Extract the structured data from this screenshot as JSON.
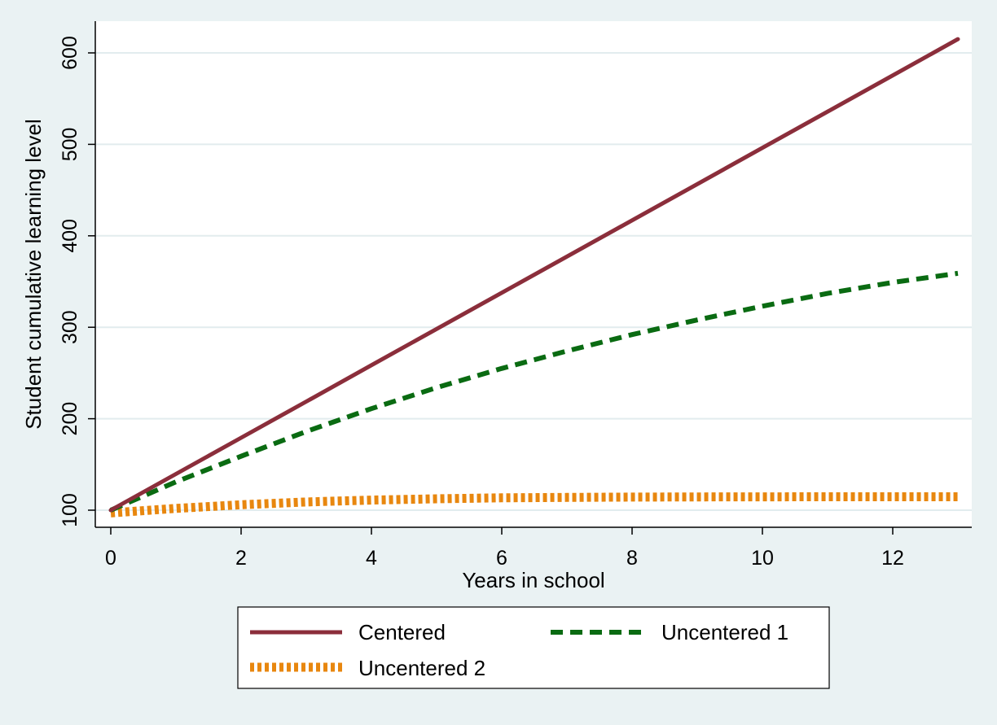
{
  "chart_data": {
    "type": "line",
    "title": "",
    "xlabel": "Years in school",
    "ylabel": "Student cumulative learning level",
    "xlim": [
      0,
      13
    ],
    "ylim": [
      100,
      630
    ],
    "xticks": [
      0,
      2,
      4,
      6,
      8,
      10,
      12
    ],
    "yticks": [
      100,
      200,
      300,
      400,
      500,
      600
    ],
    "grid": "horizontal",
    "legend": "bottom, outside",
    "x": [
      0,
      1,
      2,
      3,
      4,
      5,
      6,
      7,
      8,
      9,
      10,
      11,
      12,
      13
    ],
    "series": [
      {
        "name": "Centered",
        "color": "#8b2e3b",
        "style": "solid",
        "values": [
          100,
          139.6,
          179.2,
          218.8,
          258.5,
          298.1,
          337.7,
          377.3,
          416.9,
          456.5,
          496.2,
          535.8,
          575.4,
          615
        ]
      },
      {
        "name": "Uncentered 1",
        "color": "#0a6b12",
        "style": "dashed",
        "values": [
          100,
          131,
          159,
          186,
          211,
          234,
          255,
          274,
          292,
          308,
          323,
          337,
          349,
          359
        ]
      },
      {
        "name": "Uncentered 2",
        "color": "#e8870f",
        "style": "dotted",
        "values": [
          97,
          102,
          106,
          109,
          111,
          112.5,
          113.5,
          114,
          114.3,
          114.5,
          114.6,
          114.7,
          114.7,
          114.7
        ]
      }
    ]
  },
  "colors": {
    "background": "#eaf2f3",
    "plot_background": "#ffffff",
    "gridline": "#e2ecee"
  }
}
